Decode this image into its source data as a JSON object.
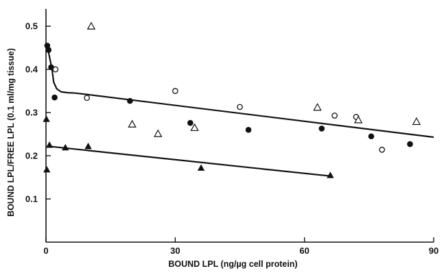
{
  "chart_data": {
    "type": "scatter",
    "xlabel": "BOUND LPL (ng/µg cell protein)",
    "ylabel": "BOUND LPL/FREE LPL (0.1 ml/mg tissue)",
    "xlim": [
      0,
      90
    ],
    "ylim": [
      0,
      0.54
    ],
    "x_ticks": [
      0,
      30,
      60,
      90
    ],
    "y_ticks": [
      0.1,
      0.2,
      0.3,
      0.4,
      0.5
    ],
    "grid": false,
    "legend": "none",
    "series": [
      {
        "marker": "filled-circle",
        "x": [
          0.3,
          0.6,
          1.2,
          2.0,
          19.5,
          33.5,
          47.0,
          64.0,
          75.5,
          84.5
        ],
        "y": [
          0.455,
          0.445,
          0.405,
          0.335,
          0.327,
          0.276,
          0.26,
          0.263,
          0.245,
          0.227
        ]
      },
      {
        "marker": "open-circle",
        "x": [
          2.2,
          9.5,
          30.0,
          45.0,
          67.0,
          72.0,
          78.0
        ],
        "y": [
          0.4,
          0.334,
          0.35,
          0.313,
          0.293,
          0.29,
          0.214
        ]
      },
      {
        "marker": "open-triangle",
        "x": [
          10.5,
          20.0,
          26.0,
          34.5,
          63.0,
          72.5,
          86.0
        ],
        "y": [
          0.5,
          0.273,
          0.251,
          0.265,
          0.312,
          0.283,
          0.279
        ]
      },
      {
        "marker": "filled-triangle",
        "x": [
          0.1,
          0.2,
          0.8,
          4.5,
          9.8,
          36.0,
          66.0
        ],
        "y": [
          0.285,
          0.168,
          0.225,
          0.219,
          0.222,
          0.172,
          0.155
        ]
      }
    ],
    "fit_lines": [
      {
        "x": [
          0.3,
          0.8,
          1.4,
          1.8,
          2.5,
          3.5,
          5.0,
          7.0,
          90.0
        ],
        "y": [
          0.455,
          0.43,
          0.4,
          0.37,
          0.355,
          0.348,
          0.346,
          0.345,
          0.243
        ]
      },
      {
        "x": [
          0.5,
          66.0
        ],
        "y": [
          0.222,
          0.153
        ]
      }
    ]
  }
}
